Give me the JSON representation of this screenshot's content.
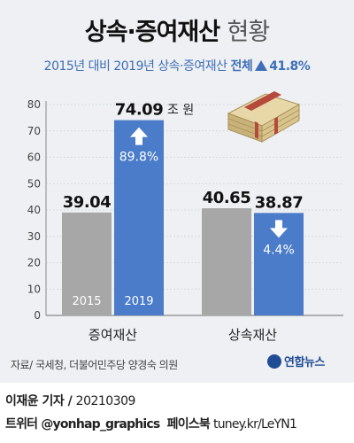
{
  "header": {
    "title_main": "상속·증여재산",
    "title_light": "현황",
    "subtitle_prefix": "2015년 대비 2019년 상속·증여재산",
    "subtitle_total_label": "전체",
    "subtitle_total_change": "41.8%"
  },
  "chart_data": {
    "type": "bar",
    "categories": [
      "증여재산",
      "상속재산"
    ],
    "series": [
      {
        "name": "2015",
        "values": [
          39.04,
          40.65
        ],
        "color": "#a7a7a7"
      },
      {
        "name": "2019",
        "values": [
          74.09,
          38.87
        ],
        "color": "#4a7cc9"
      }
    ],
    "value_labels": [
      [
        "39.04",
        "40.65"
      ],
      [
        "74.09",
        "38.87"
      ]
    ],
    "unit_label": "조 원",
    "ylim": [
      0,
      80
    ],
    "yticks": [
      0,
      10,
      20,
      30,
      40,
      50,
      60,
      70,
      80
    ],
    "changes": [
      {
        "category": "증여재산",
        "direction": "up",
        "text": "89.8%"
      },
      {
        "category": "상속재산",
        "direction": "down",
        "text": "4.4%"
      }
    ],
    "gridlines": true
  },
  "footer": {
    "source": "자료/ 국세청, 더불어민주당 양경숙 의원",
    "logo_text": "연합뉴스",
    "reporter": "이재윤 기자",
    "date": "20210309",
    "twitter": "트위터 @yonhap_graphics",
    "facebook_label": "페이스북",
    "facebook_url": "tuney.kr/LeYN1"
  },
  "colors": {
    "accent_blue": "#3e6fb8",
    "bar_2015": "#a7a7a7",
    "bar_2019": "#4a7cc9",
    "panel_bg": "#eef0f3"
  }
}
